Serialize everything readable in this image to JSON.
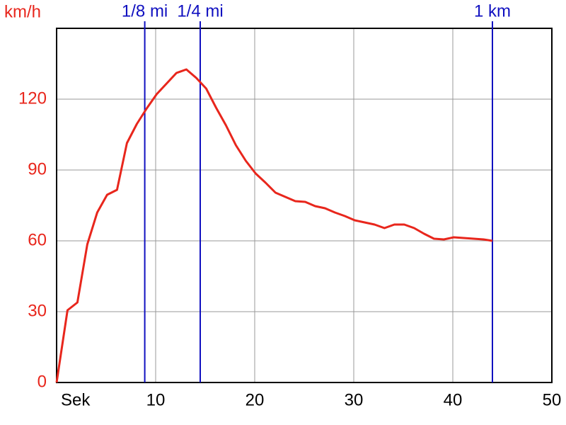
{
  "chart_data": {
    "type": "line",
    "y_label": "km/h",
    "x_label": "Sek",
    "x": [
      0,
      1.1,
      2.1,
      3.1,
      4.1,
      5.1,
      6.1,
      7.1,
      8.1,
      9.1,
      10.1,
      11.1,
      12.1,
      13.1,
      14.1,
      15.1,
      16.1,
      17.1,
      18.1,
      19.1,
      20.1,
      21.1,
      22.1,
      23.1,
      24.1,
      25.1,
      26.1,
      27.1,
      28.1,
      29.1,
      30.1,
      31.1,
      32.1,
      33.1,
      34.1,
      35.1,
      36.1,
      37.1,
      38.1,
      39.1,
      40.1,
      41.1,
      42.1,
      43.1,
      44
    ],
    "values": [
      0,
      30.6,
      33.9,
      58.5,
      72,
      79.5,
      81.6,
      101.4,
      109.5,
      116.1,
      122.1,
      126.6,
      131.1,
      132.6,
      129,
      124.5,
      116.4,
      108.9,
      100.5,
      93.9,
      88.5,
      84.6,
      80.4,
      78.6,
      76.8,
      76.5,
      74.7,
      73.8,
      72,
      70.5,
      68.7,
      67.8,
      66.9,
      65.4,
      66.9,
      66.9,
      65.4,
      63,
      60.9,
      60.6,
      61.5,
      61.2,
      60.9,
      60.6,
      60
    ],
    "color": "#e8261c",
    "markers": [
      {
        "label": "1/8 mi",
        "x": 8.9
      },
      {
        "label": "1/4 mi",
        "x": 14.5
      },
      {
        "label": "1 km",
        "x": 44
      }
    ],
    "marker_color": "#1010c0",
    "xlim": [
      0,
      50
    ],
    "xticks": [
      10,
      20,
      30,
      40,
      50
    ],
    "ylim": [
      0,
      150
    ],
    "yticks": [
      0,
      30,
      60,
      90,
      120
    ],
    "grid": true
  }
}
